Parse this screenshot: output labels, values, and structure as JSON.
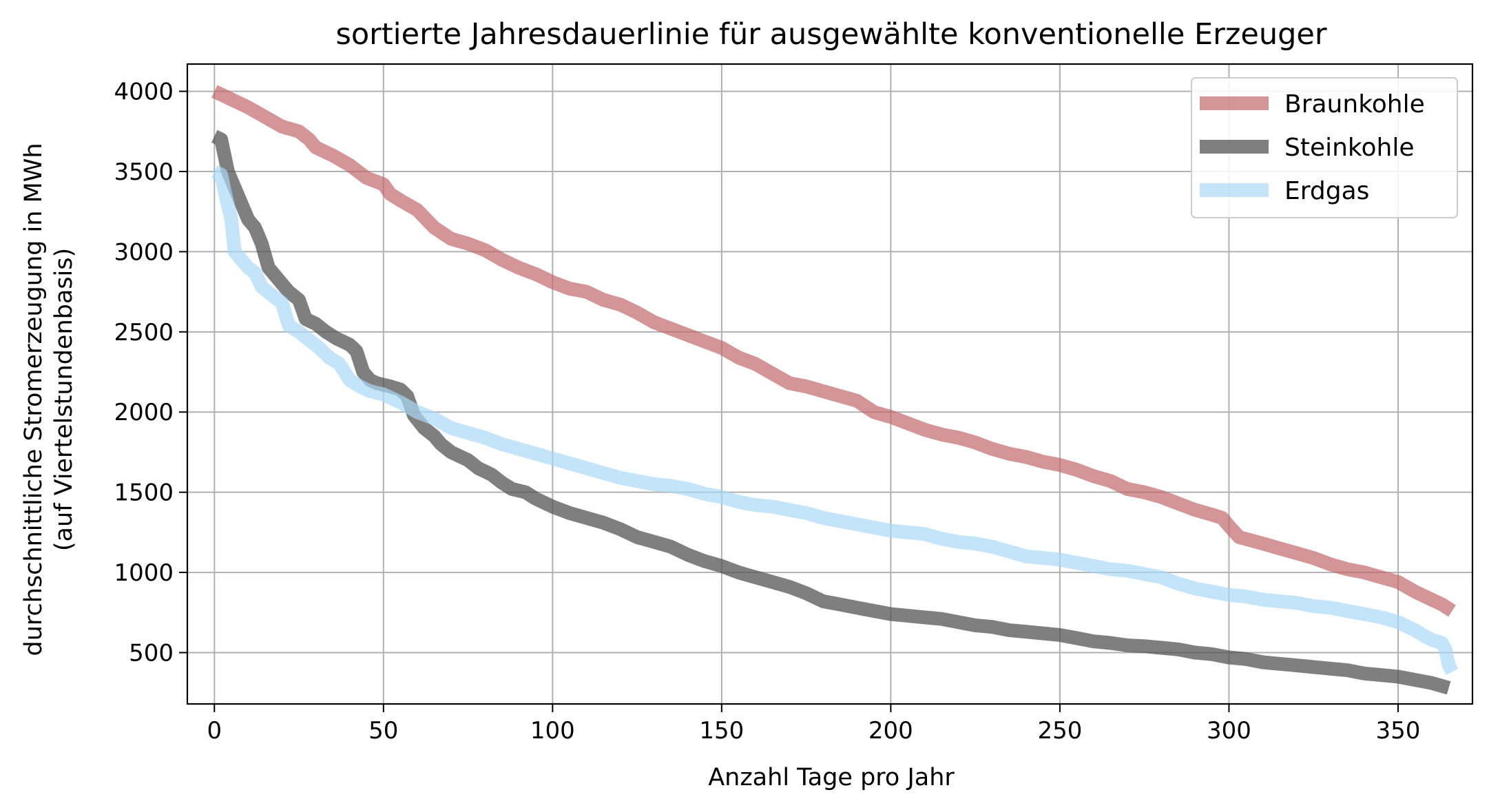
{
  "chart_data": {
    "type": "line",
    "title": "sortierte Jahresdauerlinie für ausgewählte konventionelle Erzeuger",
    "xlabel": "Anzahl Tage pro Jahr",
    "ylabel_line1": "durchschnittliche Stromerzeugung in MWh",
    "ylabel_line2": "(auf Viertelstundenbasis)",
    "xlim": [
      -8,
      372
    ],
    "ylim": [
      180,
      4170
    ],
    "xticks": [
      0,
      50,
      100,
      150,
      200,
      250,
      300,
      350
    ],
    "yticks": [
      500,
      1000,
      1500,
      2000,
      2500,
      3000,
      3500,
      4000
    ],
    "grid": true,
    "legend_position": "top-right",
    "series": [
      {
        "name": "Braunkohle",
        "color": "#c0686b",
        "opacity": 0.7,
        "points": [
          [
            0,
            4000
          ],
          [
            2,
            3980
          ],
          [
            5,
            3950
          ],
          [
            10,
            3900
          ],
          [
            15,
            3840
          ],
          [
            20,
            3780
          ],
          [
            25,
            3750
          ],
          [
            28,
            3700
          ],
          [
            30,
            3650
          ],
          [
            35,
            3600
          ],
          [
            40,
            3540
          ],
          [
            45,
            3460
          ],
          [
            50,
            3420
          ],
          [
            52,
            3360
          ],
          [
            55,
            3320
          ],
          [
            60,
            3260
          ],
          [
            65,
            3150
          ],
          [
            70,
            3080
          ],
          [
            75,
            3050
          ],
          [
            80,
            3010
          ],
          [
            85,
            2950
          ],
          [
            90,
            2900
          ],
          [
            95,
            2860
          ],
          [
            100,
            2810
          ],
          [
            105,
            2770
          ],
          [
            110,
            2750
          ],
          [
            115,
            2700
          ],
          [
            120,
            2670
          ],
          [
            125,
            2620
          ],
          [
            130,
            2560
          ],
          [
            135,
            2520
          ],
          [
            140,
            2480
          ],
          [
            145,
            2440
          ],
          [
            150,
            2400
          ],
          [
            155,
            2340
          ],
          [
            160,
            2300
          ],
          [
            165,
            2240
          ],
          [
            170,
            2180
          ],
          [
            175,
            2160
          ],
          [
            180,
            2130
          ],
          [
            185,
            2100
          ],
          [
            190,
            2070
          ],
          [
            195,
            2000
          ],
          [
            200,
            1970
          ],
          [
            205,
            1930
          ],
          [
            210,
            1890
          ],
          [
            215,
            1860
          ],
          [
            220,
            1840
          ],
          [
            225,
            1810
          ],
          [
            230,
            1770
          ],
          [
            235,
            1740
          ],
          [
            240,
            1720
          ],
          [
            245,
            1690
          ],
          [
            250,
            1670
          ],
          [
            255,
            1640
          ],
          [
            260,
            1600
          ],
          [
            265,
            1570
          ],
          [
            270,
            1520
          ],
          [
            275,
            1500
          ],
          [
            280,
            1470
          ],
          [
            285,
            1430
          ],
          [
            290,
            1390
          ],
          [
            295,
            1360
          ],
          [
            298,
            1340
          ],
          [
            300,
            1290
          ],
          [
            303,
            1220
          ],
          [
            310,
            1180
          ],
          [
            315,
            1150
          ],
          [
            320,
            1120
          ],
          [
            325,
            1090
          ],
          [
            330,
            1050
          ],
          [
            335,
            1020
          ],
          [
            340,
            1000
          ],
          [
            345,
            970
          ],
          [
            350,
            940
          ],
          [
            355,
            880
          ],
          [
            360,
            830
          ],
          [
            363,
            800
          ],
          [
            366,
            760
          ]
        ]
      },
      {
        "name": "Steinkohle",
        "color": "#545454",
        "opacity": 0.75,
        "points": [
          [
            0,
            3720
          ],
          [
            2,
            3700
          ],
          [
            4,
            3500
          ],
          [
            6,
            3400
          ],
          [
            8,
            3300
          ],
          [
            10,
            3200
          ],
          [
            12,
            3150
          ],
          [
            14,
            3050
          ],
          [
            16,
            2900
          ],
          [
            18,
            2850
          ],
          [
            20,
            2800
          ],
          [
            22,
            2750
          ],
          [
            25,
            2700
          ],
          [
            27,
            2580
          ],
          [
            30,
            2550
          ],
          [
            33,
            2500
          ],
          [
            36,
            2460
          ],
          [
            40,
            2420
          ],
          [
            42,
            2380
          ],
          [
            44,
            2250
          ],
          [
            46,
            2200
          ],
          [
            48,
            2180
          ],
          [
            52,
            2160
          ],
          [
            55,
            2140
          ],
          [
            57,
            2100
          ],
          [
            59,
            1980
          ],
          [
            62,
            1900
          ],
          [
            65,
            1850
          ],
          [
            67,
            1800
          ],
          [
            70,
            1750
          ],
          [
            75,
            1700
          ],
          [
            78,
            1650
          ],
          [
            82,
            1610
          ],
          [
            85,
            1560
          ],
          [
            88,
            1520
          ],
          [
            92,
            1500
          ],
          [
            95,
            1460
          ],
          [
            100,
            1410
          ],
          [
            105,
            1370
          ],
          [
            110,
            1340
          ],
          [
            115,
            1310
          ],
          [
            120,
            1270
          ],
          [
            125,
            1220
          ],
          [
            130,
            1190
          ],
          [
            135,
            1160
          ],
          [
            140,
            1110
          ],
          [
            145,
            1070
          ],
          [
            150,
            1040
          ],
          [
            155,
            1000
          ],
          [
            160,
            970
          ],
          [
            165,
            940
          ],
          [
            170,
            910
          ],
          [
            175,
            870
          ],
          [
            180,
            820
          ],
          [
            185,
            800
          ],
          [
            190,
            780
          ],
          [
            195,
            760
          ],
          [
            200,
            740
          ],
          [
            205,
            730
          ],
          [
            210,
            720
          ],
          [
            215,
            710
          ],
          [
            220,
            690
          ],
          [
            225,
            670
          ],
          [
            230,
            660
          ],
          [
            235,
            640
          ],
          [
            240,
            630
          ],
          [
            245,
            620
          ],
          [
            250,
            610
          ],
          [
            255,
            590
          ],
          [
            260,
            570
          ],
          [
            265,
            560
          ],
          [
            270,
            545
          ],
          [
            275,
            540
          ],
          [
            280,
            530
          ],
          [
            285,
            520
          ],
          [
            290,
            500
          ],
          [
            295,
            490
          ],
          [
            300,
            470
          ],
          [
            305,
            460
          ],
          [
            310,
            440
          ],
          [
            315,
            430
          ],
          [
            320,
            420
          ],
          [
            325,
            410
          ],
          [
            330,
            400
          ],
          [
            335,
            390
          ],
          [
            340,
            370
          ],
          [
            345,
            360
          ],
          [
            350,
            350
          ],
          [
            355,
            330
          ],
          [
            360,
            310
          ],
          [
            365,
            280
          ]
        ]
      },
      {
        "name": "Erdgas",
        "color": "#a9d8f7",
        "opacity": 0.7,
        "points": [
          [
            0,
            3500
          ],
          [
            2,
            3480
          ],
          [
            3,
            3380
          ],
          [
            5,
            3200
          ],
          [
            6,
            3000
          ],
          [
            8,
            2950
          ],
          [
            10,
            2900
          ],
          [
            12,
            2870
          ],
          [
            14,
            2780
          ],
          [
            17,
            2730
          ],
          [
            20,
            2680
          ],
          [
            22,
            2540
          ],
          [
            25,
            2500
          ],
          [
            28,
            2450
          ],
          [
            31,
            2400
          ],
          [
            34,
            2340
          ],
          [
            37,
            2300
          ],
          [
            40,
            2200
          ],
          [
            43,
            2160
          ],
          [
            46,
            2130
          ],
          [
            50,
            2110
          ],
          [
            55,
            2060
          ],
          [
            60,
            2000
          ],
          [
            65,
            1960
          ],
          [
            70,
            1900
          ],
          [
            75,
            1870
          ],
          [
            80,
            1840
          ],
          [
            85,
            1800
          ],
          [
            90,
            1770
          ],
          [
            95,
            1740
          ],
          [
            100,
            1710
          ],
          [
            105,
            1680
          ],
          [
            110,
            1650
          ],
          [
            115,
            1620
          ],
          [
            120,
            1590
          ],
          [
            125,
            1570
          ],
          [
            130,
            1550
          ],
          [
            135,
            1540
          ],
          [
            140,
            1520
          ],
          [
            145,
            1490
          ],
          [
            150,
            1470
          ],
          [
            155,
            1440
          ],
          [
            160,
            1420
          ],
          [
            165,
            1410
          ],
          [
            170,
            1390
          ],
          [
            175,
            1370
          ],
          [
            180,
            1340
          ],
          [
            185,
            1320
          ],
          [
            190,
            1300
          ],
          [
            195,
            1280
          ],
          [
            200,
            1260
          ],
          [
            205,
            1250
          ],
          [
            210,
            1240
          ],
          [
            215,
            1210
          ],
          [
            220,
            1190
          ],
          [
            225,
            1180
          ],
          [
            230,
            1160
          ],
          [
            235,
            1130
          ],
          [
            240,
            1100
          ],
          [
            245,
            1090
          ],
          [
            250,
            1080
          ],
          [
            255,
            1060
          ],
          [
            260,
            1040
          ],
          [
            265,
            1020
          ],
          [
            270,
            1010
          ],
          [
            275,
            990
          ],
          [
            280,
            970
          ],
          [
            285,
            930
          ],
          [
            290,
            900
          ],
          [
            295,
            880
          ],
          [
            300,
            860
          ],
          [
            305,
            850
          ],
          [
            310,
            830
          ],
          [
            315,
            820
          ],
          [
            320,
            810
          ],
          [
            325,
            790
          ],
          [
            330,
            780
          ],
          [
            335,
            760
          ],
          [
            340,
            740
          ],
          [
            345,
            720
          ],
          [
            350,
            690
          ],
          [
            355,
            640
          ],
          [
            358,
            600
          ],
          [
            360,
            580
          ],
          [
            363,
            560
          ],
          [
            364,
            520
          ],
          [
            365,
            420
          ],
          [
            366,
            380
          ]
        ]
      }
    ]
  }
}
